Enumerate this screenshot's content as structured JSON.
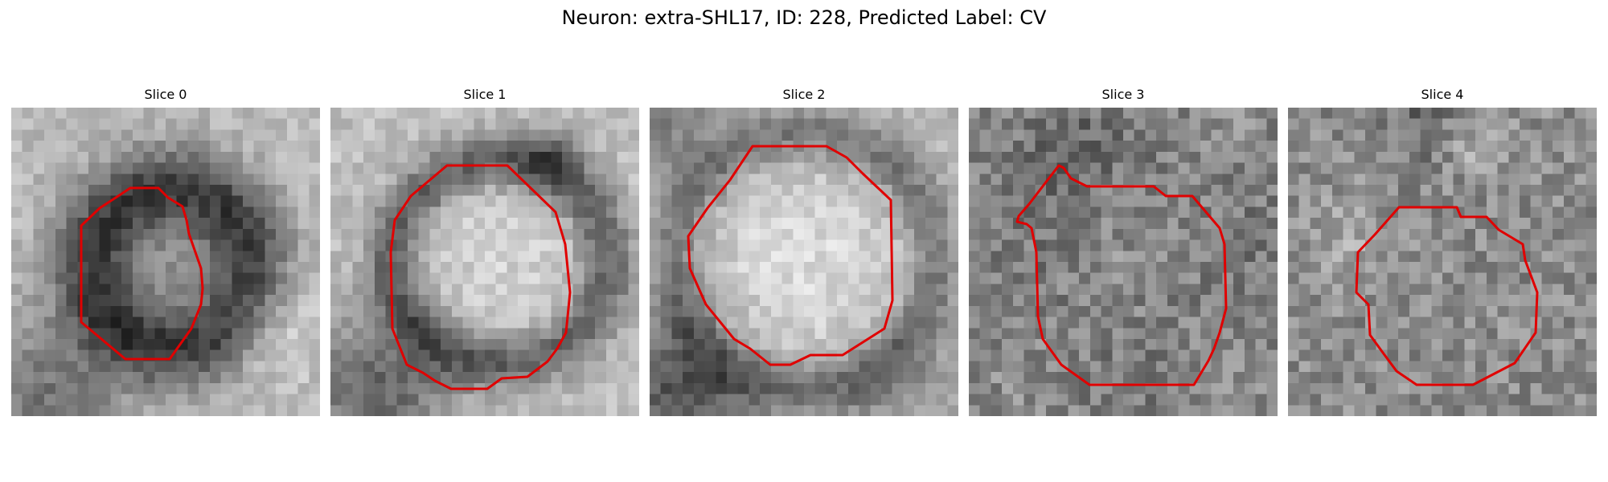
{
  "figure": {
    "title": "Neuron: extra-SHL17, ID: 228, Predicted Label: CV"
  },
  "panels": [
    {
      "title": "Slice 0"
    },
    {
      "title": "Slice 1"
    },
    {
      "title": "Slice 2"
    },
    {
      "title": "Slice 3"
    },
    {
      "title": "Slice 4"
    }
  ],
  "colors": {
    "contour": "#e00000",
    "background": "#ffffff"
  }
}
